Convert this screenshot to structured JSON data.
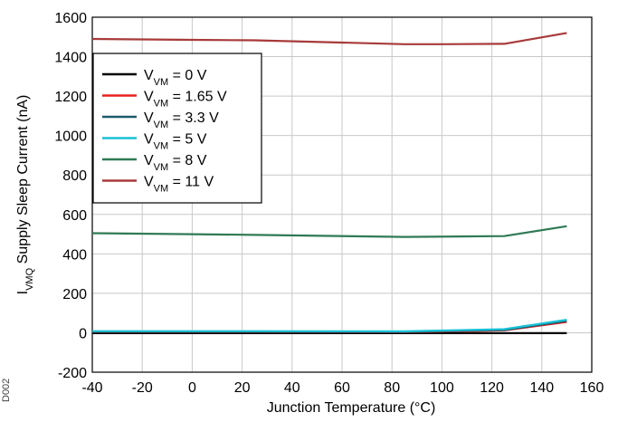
{
  "chart_data": {
    "type": "line",
    "xlabel": "Junction Temperature (°C)",
    "ylabel": {
      "prefix": "I",
      "sub": "VMQ",
      "suffix": " Supply Sleep Current (nA)"
    },
    "xlim": [
      -40,
      160
    ],
    "ylim": [
      -200,
      1600
    ],
    "xticks": [
      "-40",
      "-20",
      "0",
      "20",
      "40",
      "60",
      "80",
      "100",
      "120",
      "140",
      "160"
    ],
    "yticks": [
      "-200",
      "0",
      "200",
      "400",
      "600",
      "800",
      "1000",
      "1200",
      "1400",
      "1600"
    ],
    "grid": true,
    "legend_position": "top-left",
    "series": [
      {
        "name": {
          "prefix": "V",
          "sub": "VM",
          "suffix": " = 0 V"
        },
        "color": "#000000",
        "x": [
          -40,
          25,
          85,
          125,
          150
        ],
        "y": [
          -2,
          -2,
          -2,
          -2,
          -2
        ]
      },
      {
        "name": {
          "prefix": "V",
          "sub": "VM",
          "suffix": " = 1.65 V"
        },
        "color": "#e8211c",
        "x": [
          -40,
          25,
          85,
          100,
          125,
          150
        ],
        "y": [
          5,
          5,
          4,
          6,
          12,
          55
        ]
      },
      {
        "name": {
          "prefix": "V",
          "sub": "VM",
          "suffix": " = 3.3 V"
        },
        "color": "#1c5a6b",
        "x": [
          -40,
          25,
          85,
          100,
          125,
          150
        ],
        "y": [
          6,
          6,
          5,
          8,
          14,
          60
        ]
      },
      {
        "name": {
          "prefix": "V",
          "sub": "VM",
          "suffix": " = 5 V"
        },
        "color": "#19c1d6",
        "x": [
          -40,
          25,
          85,
          100,
          125,
          150
        ],
        "y": [
          8,
          8,
          7,
          11,
          18,
          66
        ]
      },
      {
        "name": {
          "prefix": "V",
          "sub": "VM",
          "suffix": " = 8 V"
        },
        "color": "#2f7a55",
        "x": [
          -40,
          0,
          25,
          85,
          125,
          150
        ],
        "y": [
          505,
          500,
          496,
          486,
          490,
          540
        ]
      },
      {
        "name": {
          "prefix": "V",
          "sub": "VM",
          "suffix": " = 11 V"
        },
        "color": "#a83a3a",
        "x": [
          -40,
          0,
          25,
          85,
          100,
          125,
          150
        ],
        "y": [
          1490,
          1485,
          1483,
          1463,
          1463,
          1465,
          1520
        ]
      }
    ]
  },
  "figure_tag": "D002"
}
